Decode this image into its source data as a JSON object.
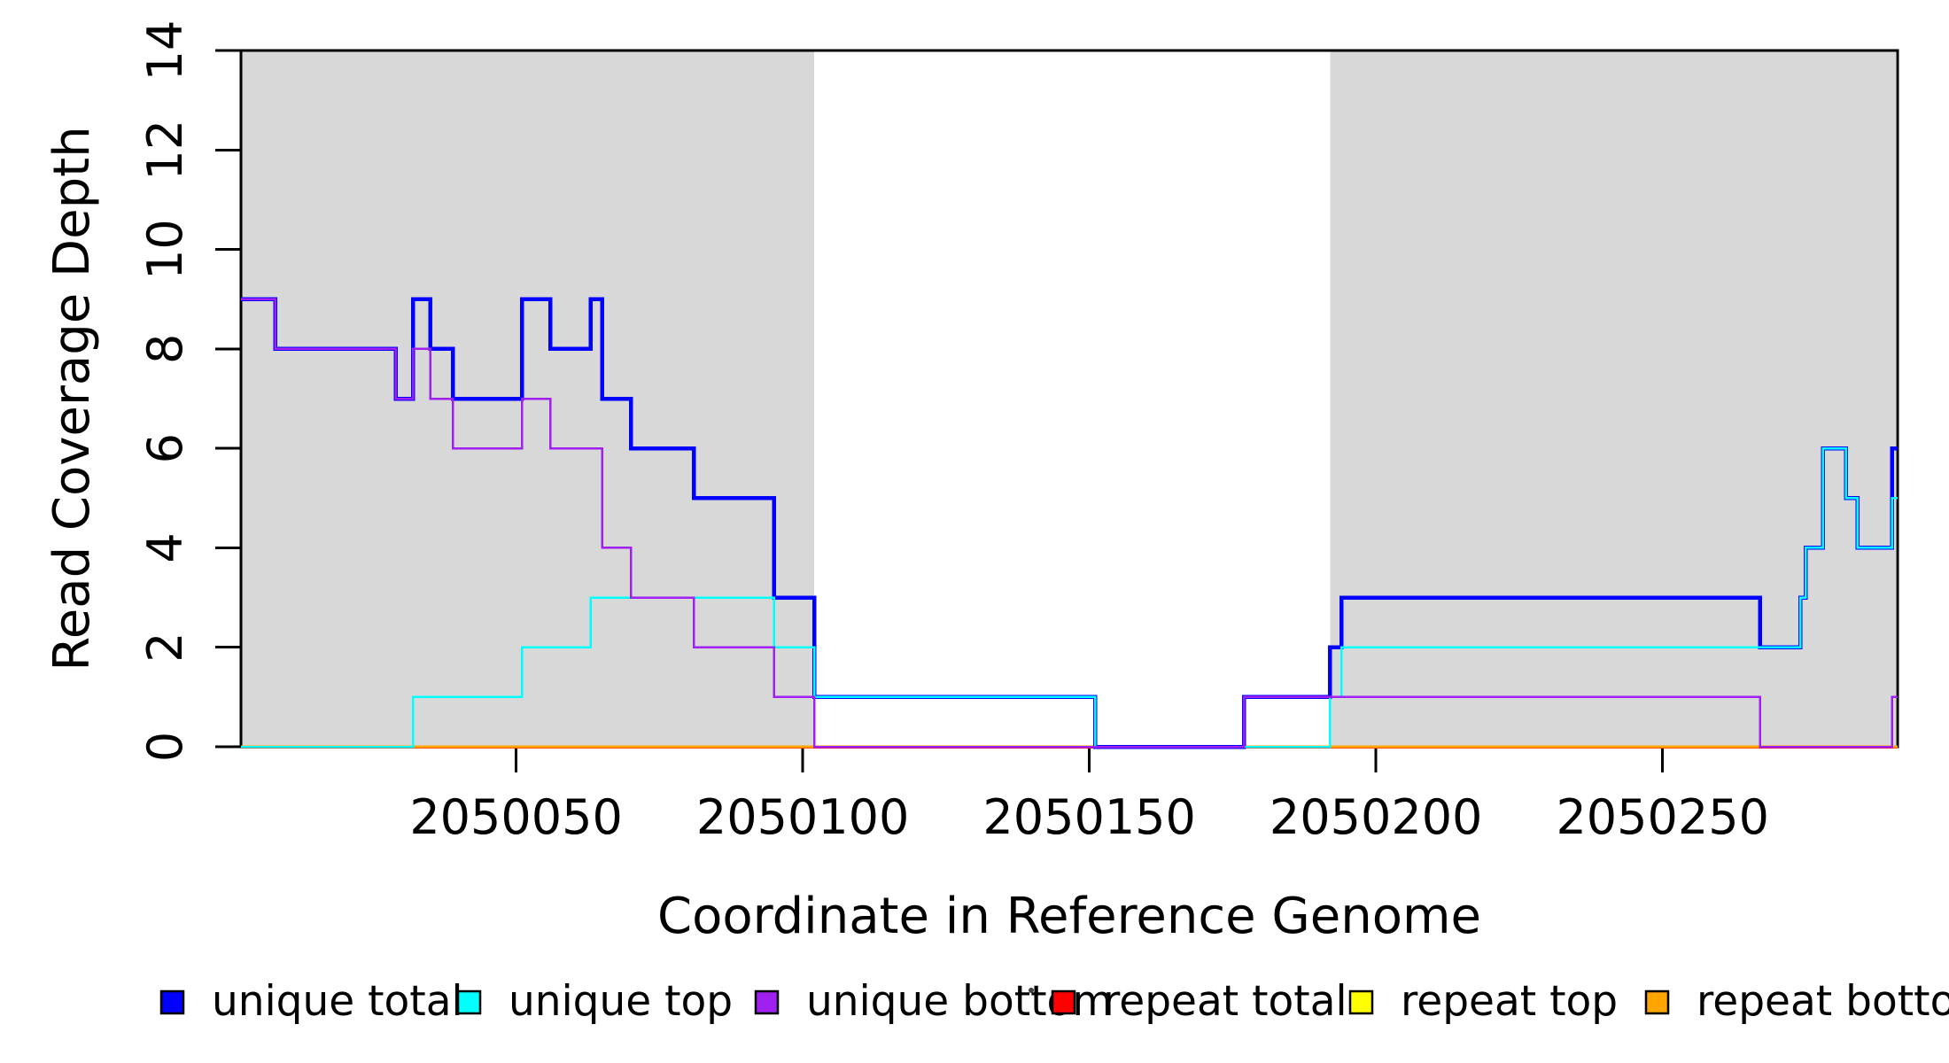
{
  "figure": {
    "background": "#ffffff",
    "stray_dot_color": "#404040"
  },
  "chart_data": {
    "type": "line",
    "subtype": "step-coverage",
    "title": "",
    "xlabel": "Coordinate in Reference Genome",
    "ylabel": "Read Coverage Depth",
    "xlim": [
      2050002,
      2050291
    ],
    "ylim": [
      0,
      14
    ],
    "x_ticks": [
      2050050,
      2050100,
      2050150,
      2050200,
      2050250
    ],
    "x_tick_labels": [
      "2050050",
      "2050100",
      "2050150",
      "2050200",
      "2050250"
    ],
    "y_ticks": [
      0,
      2,
      4,
      6,
      8,
      10,
      12,
      14
    ],
    "y_tick_labels": [
      "0",
      "2",
      "4",
      "6",
      "8",
      "10",
      "12",
      "14"
    ],
    "grid": false,
    "legend_position": "bottom",
    "shaded_regions": {
      "color": "#D8D8D8",
      "ranges": [
        [
          2050002,
          2050102
        ],
        [
          2050192,
          2050290.7
        ]
      ]
    },
    "series": [
      {
        "name": "repeat total",
        "color": "#FF0000",
        "linewidth": 3.5,
        "steps": [
          [
            2050002,
            0
          ]
        ]
      },
      {
        "name": "repeat top",
        "color": "#FFFF00",
        "linewidth": 3,
        "steps": [
          [
            2050002,
            0
          ]
        ]
      },
      {
        "name": "repeat bottom",
        "color": "#FFA500",
        "linewidth": 3,
        "steps": [
          [
            2050002,
            0
          ]
        ]
      },
      {
        "name": "unique total",
        "color": "#0000FF",
        "linewidth": 4.5,
        "steps": [
          [
            2050002,
            9
          ],
          [
            2050008,
            8
          ],
          [
            2050029,
            7
          ],
          [
            2050032,
            9
          ],
          [
            2050035,
            8
          ],
          [
            2050039,
            7
          ],
          [
            2050051,
            9
          ],
          [
            2050056,
            8
          ],
          [
            2050063,
            9
          ],
          [
            2050065,
            7
          ],
          [
            2050070,
            6
          ],
          [
            2050081,
            5
          ],
          [
            2050095,
            3
          ],
          [
            2050102,
            1
          ],
          [
            2050151,
            0
          ],
          [
            2050177,
            1
          ],
          [
            2050192,
            2
          ],
          [
            2050194,
            3
          ],
          [
            2050267,
            2
          ],
          [
            2050274,
            3
          ],
          [
            2050275,
            4
          ],
          [
            2050278,
            6
          ],
          [
            2050282,
            5
          ],
          [
            2050284,
            4
          ],
          [
            2050290,
            6
          ]
        ]
      },
      {
        "name": "unique top",
        "color": "#00FFFF",
        "linewidth": 2.5,
        "steps": [
          [
            2050002,
            0
          ],
          [
            2050032,
            1
          ],
          [
            2050051,
            2
          ],
          [
            2050063,
            3
          ],
          [
            2050095,
            2
          ],
          [
            2050102,
            1
          ],
          [
            2050151,
            0
          ],
          [
            2050192,
            1
          ],
          [
            2050194,
            2
          ],
          [
            2050274,
            3
          ],
          [
            2050275,
            4
          ],
          [
            2050278,
            6
          ],
          [
            2050282,
            5
          ],
          [
            2050284,
            4
          ],
          [
            2050290,
            5
          ]
        ]
      },
      {
        "name": "unique bottom",
        "color": "#A020F0",
        "linewidth": 2.5,
        "steps": [
          [
            2050002,
            9
          ],
          [
            2050008,
            8
          ],
          [
            2050029,
            7
          ],
          [
            2050032,
            8
          ],
          [
            2050035,
            7
          ],
          [
            2050039,
            6
          ],
          [
            2050051,
            7
          ],
          [
            2050056,
            6
          ],
          [
            2050065,
            4
          ],
          [
            2050070,
            3
          ],
          [
            2050081,
            2
          ],
          [
            2050095,
            1
          ],
          [
            2050102,
            0
          ],
          [
            2050177,
            1
          ],
          [
            2050267,
            0
          ],
          [
            2050290,
            1
          ]
        ]
      }
    ],
    "legend": {
      "items": [
        {
          "label": "unique total",
          "color": "#0000FF"
        },
        {
          "label": "unique top",
          "color": "#00FFFF"
        },
        {
          "label": "unique bottom",
          "color": "#A020F0"
        },
        {
          "label": "repeat total",
          "color": "#FF0000"
        },
        {
          "label": "repeat top",
          "color": "#FFFF00"
        },
        {
          "label": "repeat bottom",
          "color": "#FFA500"
        }
      ]
    }
  }
}
